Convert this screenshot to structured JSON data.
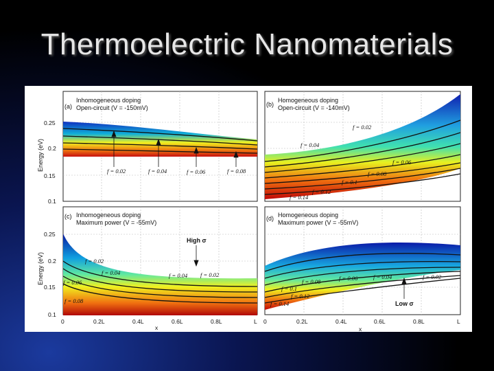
{
  "title": "Thermoelectric Nanomaterials",
  "figure": {
    "y_axis_label": "Energy (eV)",
    "x_axis_label": "x",
    "y_ticks": [
      "0.25",
      "0.2",
      "0.15",
      "0.1"
    ],
    "x_ticks": [
      "0",
      "0.2L",
      "0.4L",
      "0.6L",
      "0.8L",
      "L"
    ],
    "panels": [
      {
        "letter": "(a)",
        "line1": "Inhomogeneous doping",
        "line2": "Open-circuit (V = -150mV)",
        "f_labels": [
          "f = 0.02",
          "f = 0.04",
          "f = 0.06",
          "f = 0.08"
        ]
      },
      {
        "letter": "(b)",
        "line1": "Homogeneous doping",
        "line2": "Open-circuit (V = -140mV)",
        "f_labels": [
          "f = 0.02",
          "f = 0.04",
          "f = 0.06",
          "f = 0.08",
          "f = 0.1",
          "f = 0.12",
          "f = 0.14"
        ]
      },
      {
        "letter": "(c)",
        "line1": "Inhomogeneous doping",
        "line2": "Maximum power (V = -55mV)",
        "f_labels": [
          "f = 0.02",
          "f = 0.04",
          "f = 0.06",
          "f = 0.08",
          "f = 0.04",
          "f = 0.02"
        ],
        "annotation": "High σ"
      },
      {
        "letter": "(d)",
        "line1": "Homogeneous doping",
        "line2": "Maximum power (V = -55mV)",
        "f_labels": [
          "f = 0.08",
          "f = 0.06",
          "f = 0.04",
          "f = 0.02",
          "f = 0.1",
          "f = 0.12",
          "f = 0.14"
        ],
        "annotation": "Low σ"
      }
    ]
  }
}
